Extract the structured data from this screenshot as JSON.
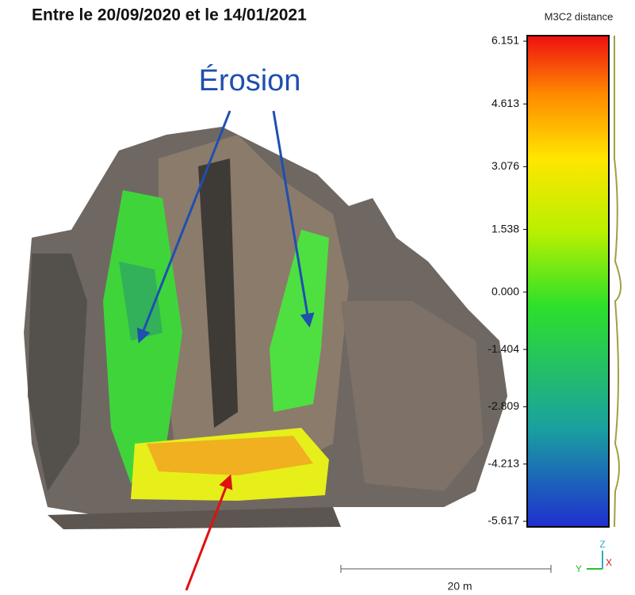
{
  "title": "Entre le 20/09/2020 et le 14/01/2021",
  "annotation": "Érosion",
  "colorbar": {
    "title": "M3C2 distance",
    "lim": [
      -5.617,
      6.151
    ],
    "ticks": [
      6.151,
      4.613,
      3.076,
      1.538,
      {
        "value": 0,
        "label": "0.000"
      },
      -1.404,
      -2.809,
      -4.213,
      -5.617
    ]
  },
  "scale_bar": "20 m",
  "axes": {
    "z": "Z",
    "y": "Y",
    "x": "X"
  }
}
